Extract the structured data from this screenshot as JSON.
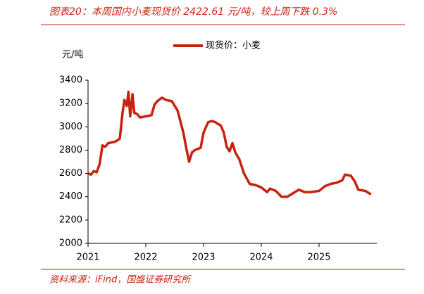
{
  "chart_data": {
    "type": "line",
    "title": "图表20：本周国内小麦现货价 2422.61 元/吨，较上周下跌 0.3%",
    "y_label": "元/吨",
    "source": "资料来源：iFind，国盛证券研究所",
    "x": [
      2021.0,
      2021.05,
      2021.1,
      2021.15,
      2021.2,
      2021.25,
      2021.3,
      2021.35,
      2021.45,
      2021.5,
      2021.55,
      2021.6,
      2021.63,
      2021.67,
      2021.7,
      2021.73,
      2021.77,
      2021.8,
      2021.85,
      2021.9,
      2022.0,
      2022.1,
      2022.15,
      2022.2,
      2022.28,
      2022.35,
      2022.45,
      2022.55,
      2022.65,
      2022.7,
      2022.75,
      2022.8,
      2022.85,
      2022.95,
      2023.0,
      2023.08,
      2023.15,
      2023.2,
      2023.3,
      2023.35,
      2023.4,
      2023.45,
      2023.5,
      2023.55,
      2023.62,
      2023.7,
      2023.8,
      2023.9,
      2024.0,
      2024.1,
      2024.15,
      2024.25,
      2024.35,
      2024.45,
      2024.55,
      2024.65,
      2024.75,
      2024.85,
      2025.0,
      2025.1,
      2025.2,
      2025.3,
      2025.4,
      2025.45,
      2025.55,
      2025.62,
      2025.68,
      2025.8,
      2025.9
    ],
    "series": [
      {
        "name": "现货价：小麦",
        "color": "#c8220e",
        "values": [
          2600,
          2590,
          2620,
          2610,
          2680,
          2840,
          2830,
          2860,
          2870,
          2880,
          2900,
          3130,
          3230,
          3180,
          3300,
          3090,
          3280,
          3120,
          3110,
          3080,
          3090,
          3100,
          3190,
          3220,
          3250,
          3230,
          3220,
          3140,
          2950,
          2820,
          2700,
          2780,
          2800,
          2820,
          2950,
          3040,
          3050,
          3040,
          3010,
          2950,
          2830,
          2790,
          2860,
          2780,
          2720,
          2600,
          2510,
          2500,
          2480,
          2440,
          2470,
          2450,
          2400,
          2400,
          2430,
          2460,
          2440,
          2440,
          2450,
          2490,
          2510,
          2520,
          2540,
          2590,
          2580,
          2530,
          2460,
          2450,
          2420
        ]
      }
    ],
    "xlim": [
      2021,
      2026
    ],
    "xticks": [
      2021,
      2022,
      2023,
      2024,
      2025
    ],
    "ylim": [
      2000,
      3400
    ],
    "yticks": [
      2000,
      2200,
      2400,
      2600,
      2800,
      3000,
      3200,
      3400
    ]
  }
}
